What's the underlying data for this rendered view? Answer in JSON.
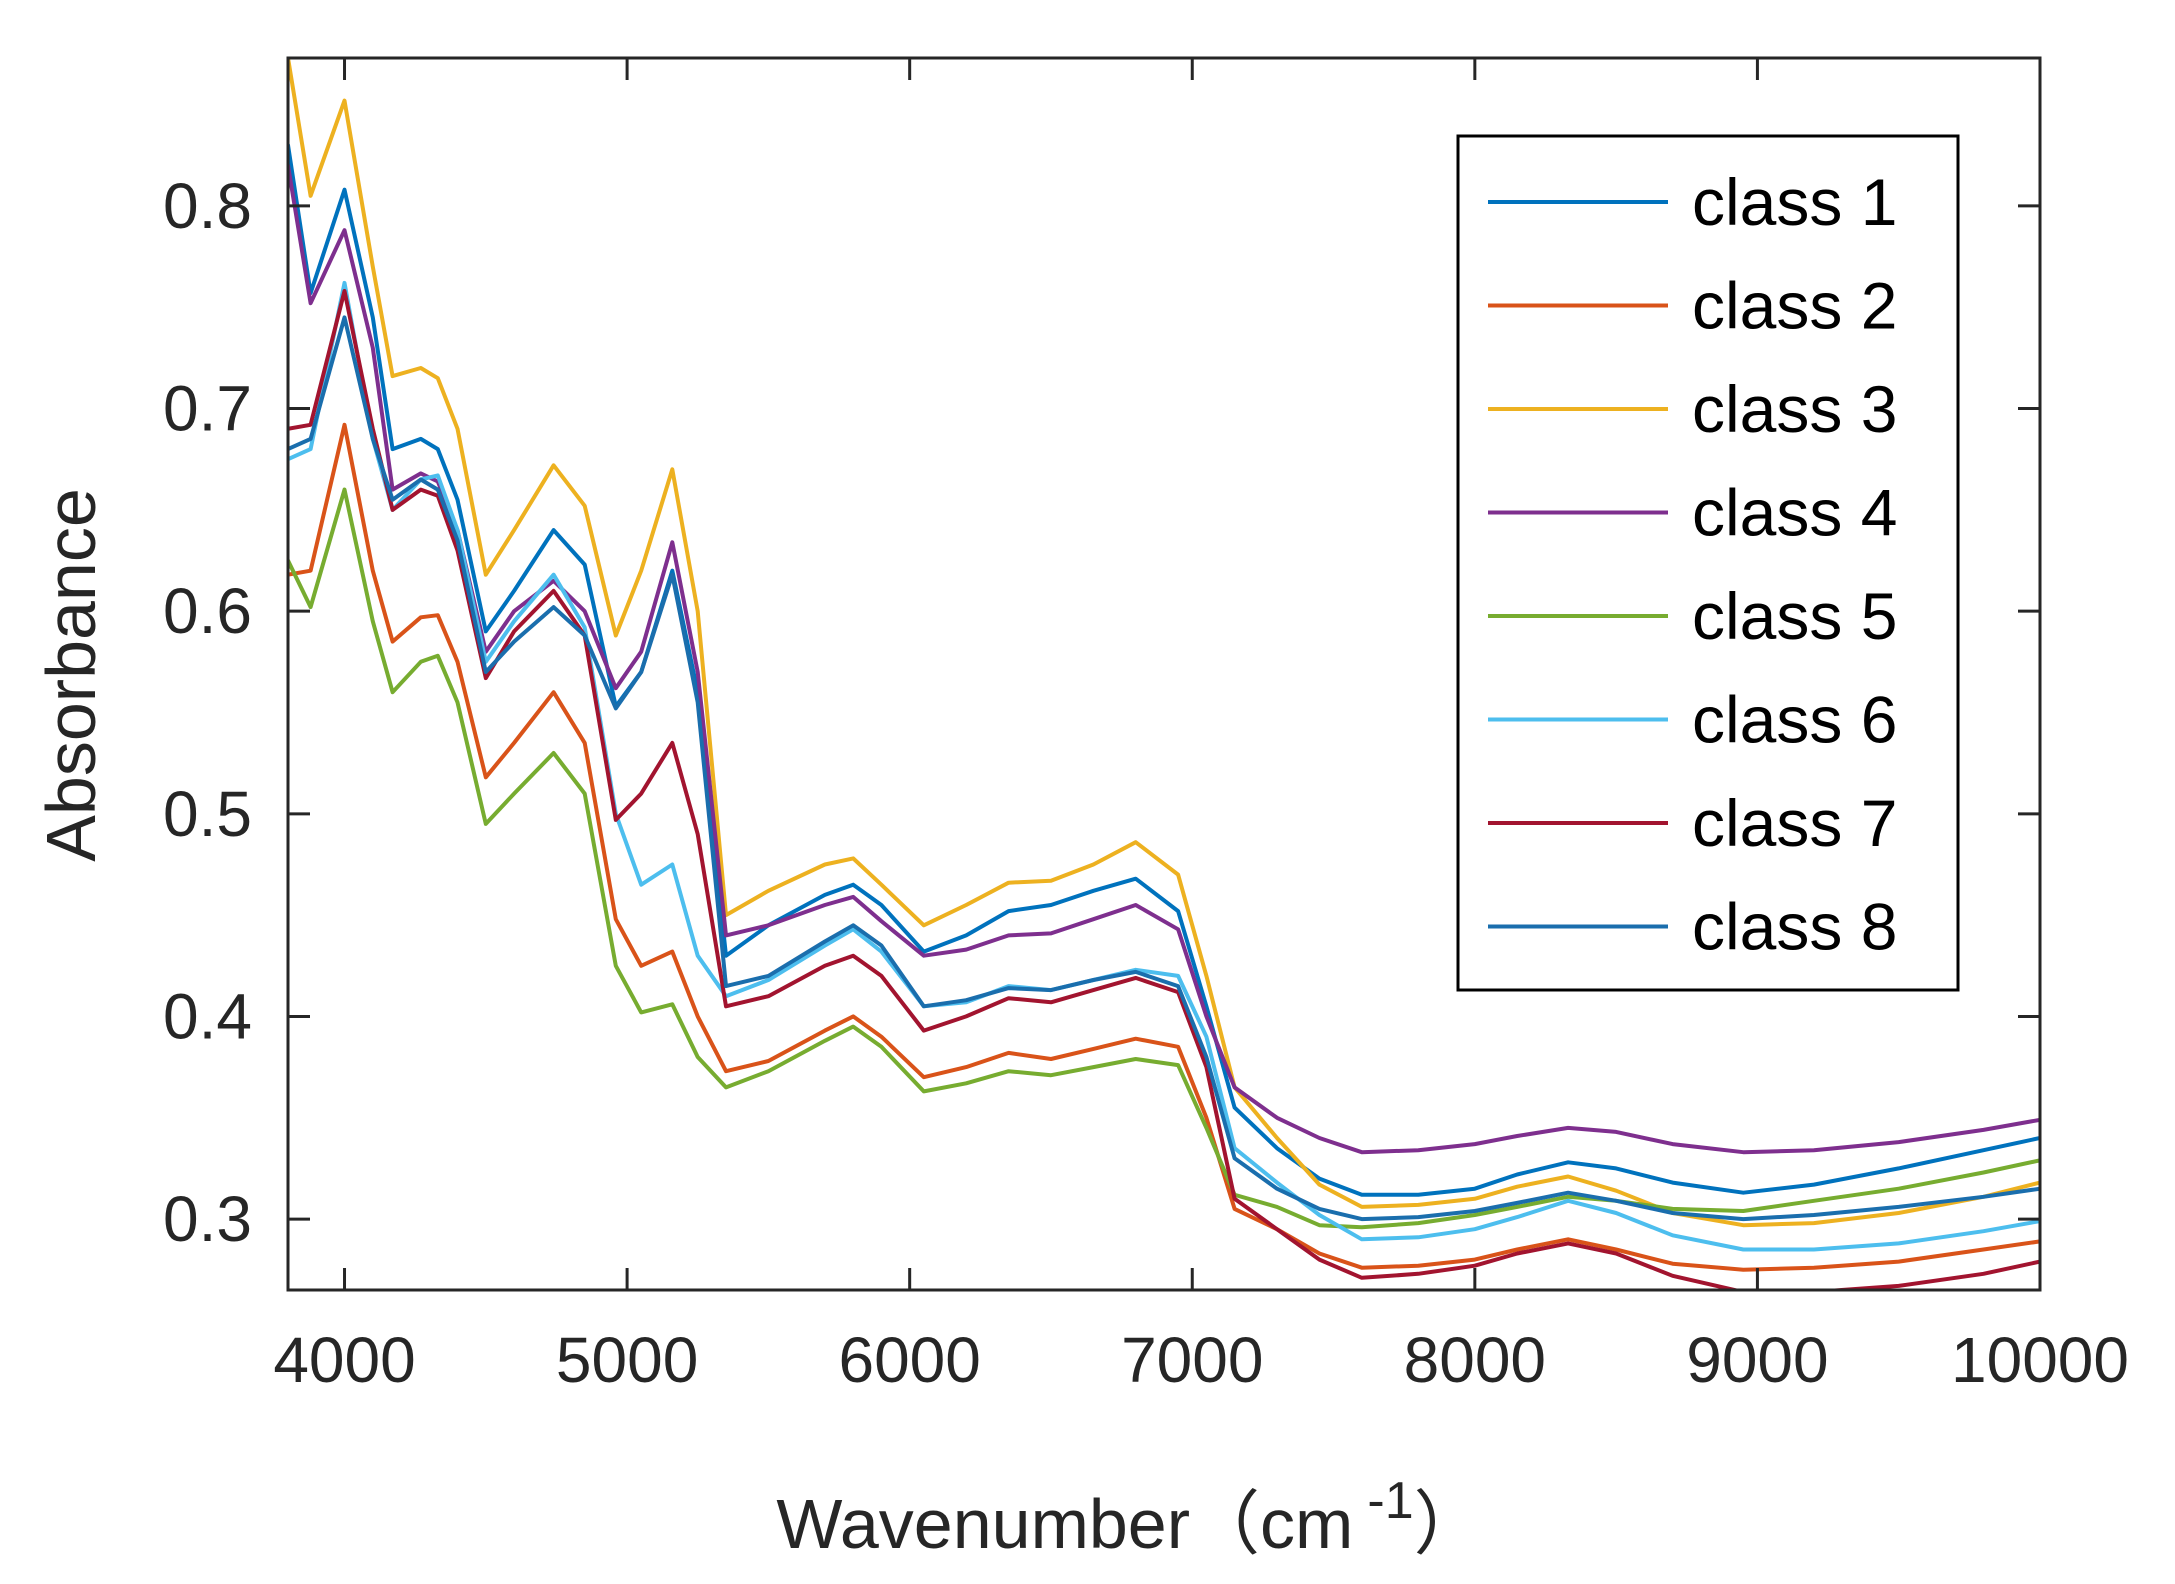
{
  "chart_data": {
    "type": "line",
    "title": "",
    "xlabel": "Wavenumber（cm",
    "xlabel_superscript": "-1",
    "xlabel_close": "）",
    "ylabel": "Absorbance",
    "xlim": [
      3800,
      10000
    ],
    "ylim": [
      0.265,
      0.873
    ],
    "xticks": [
      4000,
      5000,
      6000,
      7000,
      8000,
      9000,
      10000
    ],
    "xtick_labels": [
      "4000",
      "5000",
      "6000",
      "7000",
      "8000",
      "9000",
      "10000"
    ],
    "yticks": [
      0.3,
      0.4,
      0.5,
      0.6,
      0.7,
      0.8
    ],
    "ytick_labels": [
      "0.3",
      "0.4",
      "0.5",
      "0.6",
      "0.7",
      "0.8"
    ],
    "grid": false,
    "legend_position": "top-right",
    "series": [
      {
        "name": "class 1",
        "color": "#0072BD",
        "x": [
          3800,
          3880,
          4000,
          4100,
          4170,
          4270,
          4330,
          4400,
          4500,
          4600,
          4740,
          4850,
          4960,
          5050,
          5160,
          5250,
          5350,
          5500,
          5700,
          5800,
          5900,
          6050,
          6200,
          6350,
          6500,
          6650,
          6800,
          6950,
          7050,
          7150,
          7300,
          7450,
          7600,
          7800,
          8000,
          8150,
          8330,
          8500,
          8700,
          8950,
          9200,
          9500,
          9800,
          10000
        ],
        "y": [
          0.83,
          0.757,
          0.808,
          0.745,
          0.68,
          0.685,
          0.68,
          0.655,
          0.59,
          0.61,
          0.64,
          0.623,
          0.553,
          0.57,
          0.62,
          0.56,
          0.43,
          0.445,
          0.46,
          0.465,
          0.455,
          0.432,
          0.44,
          0.452,
          0.455,
          0.462,
          0.468,
          0.452,
          0.405,
          0.355,
          0.335,
          0.32,
          0.312,
          0.312,
          0.315,
          0.322,
          0.328,
          0.325,
          0.318,
          0.313,
          0.317,
          0.325,
          0.334,
          0.34
        ]
      },
      {
        "name": "class 2",
        "color": "#D95319",
        "x": [
          3800,
          3880,
          4000,
          4100,
          4170,
          4270,
          4330,
          4400,
          4500,
          4600,
          4740,
          4850,
          4960,
          5050,
          5160,
          5250,
          5350,
          5500,
          5700,
          5800,
          5900,
          6050,
          6200,
          6350,
          6500,
          6650,
          6800,
          6950,
          7050,
          7150,
          7300,
          7450,
          7600,
          7800,
          8000,
          8150,
          8330,
          8500,
          8700,
          8950,
          9200,
          9500,
          9800,
          10000
        ],
        "y": [
          0.618,
          0.62,
          0.692,
          0.62,
          0.585,
          0.597,
          0.598,
          0.575,
          0.518,
          0.535,
          0.56,
          0.535,
          0.448,
          0.425,
          0.432,
          0.4,
          0.373,
          0.378,
          0.393,
          0.4,
          0.39,
          0.37,
          0.375,
          0.382,
          0.379,
          0.384,
          0.389,
          0.385,
          0.35,
          0.305,
          0.295,
          0.283,
          0.276,
          0.277,
          0.28,
          0.285,
          0.29,
          0.285,
          0.278,
          0.275,
          0.276,
          0.279,
          0.285,
          0.289
        ]
      },
      {
        "name": "class 3",
        "color": "#EDB120",
        "x": [
          3800,
          3880,
          4000,
          4100,
          4170,
          4270,
          4330,
          4400,
          4500,
          4600,
          4740,
          4850,
          4960,
          5050,
          5160,
          5250,
          5350,
          5500,
          5700,
          5800,
          5900,
          6050,
          6200,
          6350,
          6500,
          6650,
          6800,
          6950,
          7050,
          7150,
          7300,
          7450,
          7600,
          7800,
          8000,
          8150,
          8330,
          8500,
          8700,
          8950,
          9200,
          9500,
          9800,
          10000
        ],
        "y": [
          0.873,
          0.805,
          0.852,
          0.77,
          0.716,
          0.72,
          0.715,
          0.69,
          0.618,
          0.64,
          0.672,
          0.652,
          0.588,
          0.62,
          0.67,
          0.6,
          0.45,
          0.462,
          0.475,
          0.478,
          0.465,
          0.445,
          0.455,
          0.466,
          0.467,
          0.475,
          0.486,
          0.47,
          0.42,
          0.365,
          0.34,
          0.317,
          0.306,
          0.307,
          0.31,
          0.316,
          0.321,
          0.314,
          0.303,
          0.297,
          0.298,
          0.303,
          0.311,
          0.318
        ]
      },
      {
        "name": "class 4",
        "color": "#7E2F8E",
        "x": [
          3800,
          3880,
          4000,
          4100,
          4170,
          4270,
          4330,
          4400,
          4500,
          4600,
          4740,
          4850,
          4960,
          5050,
          5160,
          5250,
          5350,
          5500,
          5700,
          5800,
          5900,
          6050,
          6200,
          6350,
          6500,
          6650,
          6800,
          6950,
          7050,
          7150,
          7300,
          7450,
          7600,
          7800,
          8000,
          8150,
          8330,
          8500,
          8700,
          8950,
          9200,
          9500,
          9800,
          10000
        ],
        "y": [
          0.82,
          0.752,
          0.788,
          0.73,
          0.66,
          0.668,
          0.664,
          0.64,
          0.58,
          0.6,
          0.615,
          0.6,
          0.562,
          0.58,
          0.634,
          0.57,
          0.44,
          0.445,
          0.455,
          0.459,
          0.447,
          0.43,
          0.433,
          0.44,
          0.441,
          0.448,
          0.455,
          0.443,
          0.4,
          0.365,
          0.35,
          0.34,
          0.333,
          0.334,
          0.337,
          0.341,
          0.345,
          0.343,
          0.337,
          0.333,
          0.334,
          0.338,
          0.344,
          0.349
        ]
      },
      {
        "name": "class 5",
        "color": "#77AC30",
        "x": [
          3800,
          3880,
          4000,
          4100,
          4170,
          4270,
          4330,
          4400,
          4500,
          4600,
          4740,
          4850,
          4960,
          5050,
          5160,
          5250,
          5350,
          5500,
          5700,
          5800,
          5900,
          6050,
          6200,
          6350,
          6500,
          6650,
          6800,
          6950,
          7050,
          7150,
          7300,
          7450,
          7600,
          7800,
          8000,
          8150,
          8330,
          8500,
          8700,
          8950,
          9200,
          9500,
          9800,
          10000
        ],
        "y": [
          0.625,
          0.602,
          0.66,
          0.595,
          0.56,
          0.575,
          0.578,
          0.555,
          0.495,
          0.51,
          0.53,
          0.51,
          0.425,
          0.402,
          0.406,
          0.38,
          0.365,
          0.373,
          0.388,
          0.395,
          0.385,
          0.363,
          0.367,
          0.373,
          0.371,
          0.375,
          0.379,
          0.376,
          0.345,
          0.312,
          0.306,
          0.297,
          0.296,
          0.298,
          0.302,
          0.306,
          0.311,
          0.309,
          0.305,
          0.304,
          0.309,
          0.315,
          0.323,
          0.329
        ]
      },
      {
        "name": "class 6",
        "color": "#4DBEEE",
        "x": [
          3800,
          3880,
          4000,
          4100,
          4170,
          4270,
          4330,
          4400,
          4500,
          4600,
          4740,
          4850,
          4960,
          5050,
          5160,
          5250,
          5350,
          5500,
          5700,
          5800,
          5900,
          6050,
          6200,
          6350,
          6500,
          6650,
          6800,
          6950,
          7050,
          7150,
          7300,
          7450,
          7600,
          7800,
          8000,
          8150,
          8330,
          8500,
          8700,
          8950,
          9200,
          9500,
          9800,
          10000
        ],
        "y": [
          0.675,
          0.68,
          0.762,
          0.685,
          0.65,
          0.665,
          0.667,
          0.64,
          0.575,
          0.595,
          0.618,
          0.592,
          0.5,
          0.465,
          0.475,
          0.43,
          0.41,
          0.418,
          0.435,
          0.443,
          0.432,
          0.405,
          0.407,
          0.415,
          0.413,
          0.418,
          0.423,
          0.42,
          0.39,
          0.335,
          0.318,
          0.302,
          0.29,
          0.291,
          0.295,
          0.301,
          0.309,
          0.303,
          0.292,
          0.285,
          0.285,
          0.288,
          0.294,
          0.299
        ]
      },
      {
        "name": "class 7",
        "color": "#A2142F",
        "x": [
          3800,
          3880,
          4000,
          4100,
          4170,
          4270,
          4330,
          4400,
          4500,
          4600,
          4740,
          4850,
          4960,
          5050,
          5160,
          5250,
          5350,
          5500,
          5700,
          5800,
          5900,
          6050,
          6200,
          6350,
          6500,
          6650,
          6800,
          6950,
          7050,
          7150,
          7300,
          7450,
          7600,
          7800,
          8000,
          8150,
          8330,
          8500,
          8700,
          8950,
          9200,
          9500,
          9800,
          10000
        ],
        "y": [
          0.69,
          0.692,
          0.758,
          0.69,
          0.65,
          0.66,
          0.657,
          0.63,
          0.567,
          0.59,
          0.61,
          0.588,
          0.497,
          0.51,
          0.535,
          0.49,
          0.405,
          0.41,
          0.425,
          0.43,
          0.42,
          0.393,
          0.4,
          0.409,
          0.407,
          0.413,
          0.419,
          0.412,
          0.375,
          0.31,
          0.295,
          0.28,
          0.271,
          0.273,
          0.277,
          0.283,
          0.288,
          0.283,
          0.272,
          0.264,
          0.264,
          0.267,
          0.273,
          0.279
        ]
      },
      {
        "name": "class 8",
        "color": "#1A6EAD",
        "x": [
          3800,
          3880,
          4000,
          4100,
          4170,
          4270,
          4330,
          4400,
          4500,
          4600,
          4740,
          4850,
          4960,
          5050,
          5160,
          5250,
          5350,
          5500,
          5700,
          5800,
          5900,
          6050,
          6200,
          6350,
          6500,
          6650,
          6800,
          6950,
          7050,
          7150,
          7300,
          7450,
          7600,
          7800,
          8000,
          8150,
          8330,
          8500,
          8700,
          8950,
          9200,
          9500,
          9800,
          10000
        ],
        "y": [
          0.68,
          0.685,
          0.745,
          0.685,
          0.655,
          0.665,
          0.66,
          0.635,
          0.57,
          0.585,
          0.602,
          0.588,
          0.552,
          0.57,
          0.618,
          0.555,
          0.415,
          0.42,
          0.437,
          0.445,
          0.435,
          0.405,
          0.408,
          0.414,
          0.413,
          0.418,
          0.422,
          0.415,
          0.38,
          0.33,
          0.315,
          0.305,
          0.3,
          0.301,
          0.304,
          0.308,
          0.313,
          0.309,
          0.303,
          0.3,
          0.302,
          0.306,
          0.311,
          0.315
        ]
      }
    ]
  }
}
